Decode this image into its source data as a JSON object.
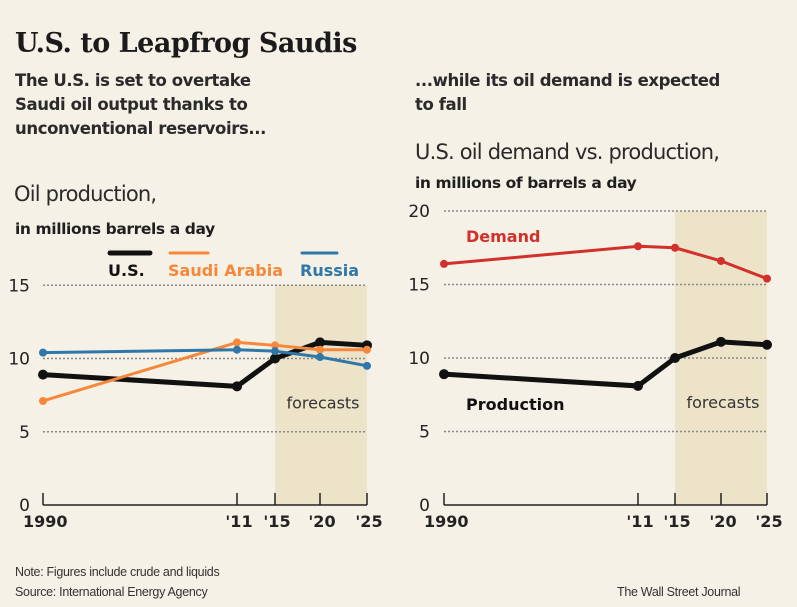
{
  "header": {
    "title": "U.S. to Leapfrog Saudis",
    "left_dek": [
      "The U.S. is set to overtake",
      "Saudi oil output thanks to",
      "unconventional reservoirs..."
    ],
    "right_dek": [
      "...while its oil demand is expected",
      "to fall"
    ]
  },
  "footer": {
    "note": "Note: Figures include crude and liquids",
    "source": "Source:  International Energy Agency",
    "credit": "The Wall Street Journal"
  },
  "colors": {
    "background": "#f6f1e6",
    "forecast_shade": "#ede3c9",
    "us": "#111111",
    "saudi": "#f5883a",
    "russia": "#2e77a8",
    "demand": "#d2302c",
    "grid": "#888888"
  },
  "chart_data": [
    {
      "type": "line",
      "title": "Oil production,",
      "subtitle": "in millions barrels a day",
      "xlabel": "",
      "ylabel": "",
      "x": [
        1990,
        2011,
        2015,
        2020,
        2025
      ],
      "x_tick_labels": [
        "1990",
        "'11",
        "'15",
        "'20",
        "'25"
      ],
      "ylim": [
        0,
        15
      ],
      "y_ticks": [
        0,
        5,
        10,
        15
      ],
      "grid": true,
      "legend_position": "top",
      "forecast_region": {
        "from": 2015,
        "to": 2025,
        "label": "forecasts"
      },
      "series": [
        {
          "name": "U.S.",
          "color_key": "us",
          "values": [
            8.9,
            8.1,
            10.0,
            11.1,
            10.9
          ]
        },
        {
          "name": "Saudi Arabia",
          "color_key": "saudi",
          "values": [
            7.1,
            11.1,
            10.9,
            10.6,
            10.6
          ]
        },
        {
          "name": "Russia",
          "color_key": "russia",
          "values": [
            10.4,
            10.6,
            10.5,
            10.1,
            9.5
          ]
        }
      ]
    },
    {
      "type": "line",
      "title": "U.S. oil demand vs. production,",
      "subtitle": "in millions of barrels a day",
      "xlabel": "",
      "ylabel": "",
      "x": [
        1990,
        2011,
        2015,
        2020,
        2025
      ],
      "x_tick_labels": [
        "1990",
        "'11",
        "'15",
        "'20",
        "'25"
      ],
      "ylim": [
        0,
        20
      ],
      "y_ticks": [
        0,
        5,
        10,
        15,
        20
      ],
      "grid": true,
      "forecast_region": {
        "from": 2015,
        "to": 2025,
        "label": "forecasts"
      },
      "annotations": [
        "Demand",
        "Production"
      ],
      "series": [
        {
          "name": "Demand",
          "color_key": "demand",
          "values": [
            16.4,
            17.6,
            17.5,
            16.6,
            15.4
          ]
        },
        {
          "name": "Production",
          "color_key": "us",
          "values": [
            8.9,
            8.1,
            10.0,
            11.1,
            10.9
          ]
        }
      ]
    }
  ]
}
